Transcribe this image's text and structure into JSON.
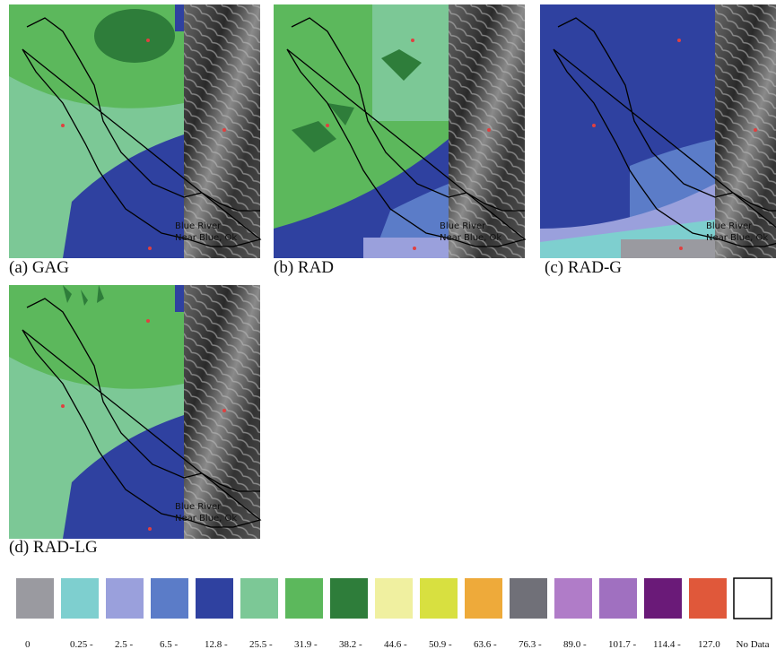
{
  "panels": [
    {
      "label": "(a) GAG",
      "map_text": [
        "Blue River",
        "Near Blue, Ok"
      ]
    },
    {
      "label": "(b) RAD",
      "map_text": [
        "Blue River",
        "Near Blue, Ok"
      ]
    },
    {
      "label": "(c) RAD-G",
      "map_text": [
        "Blue River",
        "Near Blue, Ok"
      ]
    },
    {
      "label": "(d) RAD-LG",
      "map_text": [
        "Blue River",
        "Near Blue, Ok"
      ]
    }
  ],
  "legend": {
    "colors": [
      "#9a9aa0",
      "#7ecfcf",
      "#9aa0dc",
      "#5b7cc8",
      "#2f41a0",
      "#7cc896",
      "#5cb85c",
      "#2e7d3a",
      "#f0f0a0",
      "#d8e040",
      "#eeaa3a",
      "#707078",
      "#b07cc8",
      "#a070c0",
      "#6a1a78",
      "#e0583a",
      "#ffffff"
    ],
    "labels": [
      "0",
      "0.25 -",
      "2.5 -",
      "6.5 -",
      "12.8 -",
      "25.5 -",
      "31.9 -",
      "38.2 -",
      "44.6 -",
      "50.9 -",
      "63.6 -",
      "76.3 -",
      "89.0 -",
      "101.7 -",
      "114.4 -",
      "127.0",
      "No Data"
    ]
  }
}
